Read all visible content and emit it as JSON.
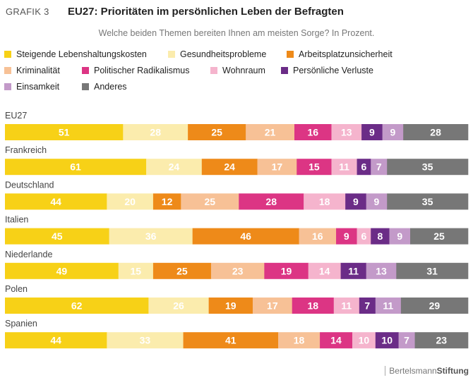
{
  "header": {
    "label": "GRAFIK 3",
    "title": "EU27: Prioritäten im persönlichen Leben der Befragten",
    "subtitle": "Welche beiden Themen bereiten Ihnen am meisten Sorge? In Prozent."
  },
  "footer": {
    "brand_a": "Bertelsmann",
    "brand_b": "Stiftung"
  },
  "chart_data": {
    "type": "bar",
    "stacked": true,
    "orientation": "horizontal",
    "title": "EU27: Prioritäten im persönlichen Leben der Befragten",
    "subtitle": "Welche beiden Themen bereiten Ihnen am meisten Sorge? In Prozent.",
    "legend_position": "top",
    "categories": [
      "EU27",
      "Frankreich",
      "Deutschland",
      "Italien",
      "Niederlande",
      "Polen",
      "Spanien"
    ],
    "series": [
      {
        "name": "Steigende Lebenshaltungskosten",
        "color": "#f7d117",
        "label_color": "#ffffff",
        "values": [
          51,
          61,
          44,
          45,
          49,
          62,
          44
        ]
      },
      {
        "name": "Gesundheitsprobleme",
        "color": "#fbecad",
        "label_color": "#ffffff",
        "values": [
          28,
          24,
          20,
          36,
          15,
          26,
          33
        ]
      },
      {
        "name": "Arbeitsplatzunsicherheit",
        "color": "#ee8a19",
        "label_color": "#ffffff",
        "values": [
          25,
          24,
          12,
          46,
          25,
          19,
          41
        ]
      },
      {
        "name": "Kriminalität",
        "color": "#f7c196",
        "label_color": "#ffffff",
        "values": [
          21,
          17,
          25,
          16,
          23,
          17,
          18
        ]
      },
      {
        "name": "Politischer Radikalismus",
        "color": "#dc3584",
        "label_color": "#ffffff",
        "values": [
          16,
          15,
          28,
          9,
          19,
          18,
          14
        ]
      },
      {
        "name": "Wohnraum",
        "color": "#f5b4cd",
        "label_color": "#ffffff",
        "values": [
          13,
          11,
          18,
          6,
          14,
          11,
          10
        ]
      },
      {
        "name": "Persönliche Verluste",
        "color": "#6b2c87",
        "label_color": "#ffffff",
        "values": [
          9,
          6,
          9,
          8,
          11,
          7,
          10
        ]
      },
      {
        "name": "Einsamkeit",
        "color": "#c39ac9",
        "label_color": "#ffffff",
        "values": [
          9,
          7,
          9,
          9,
          13,
          11,
          7
        ]
      },
      {
        "name": "Anderes",
        "color": "#777777",
        "label_color": "#ffffff",
        "values": [
          28,
          35,
          35,
          25,
          31,
          29,
          23
        ]
      }
    ]
  }
}
